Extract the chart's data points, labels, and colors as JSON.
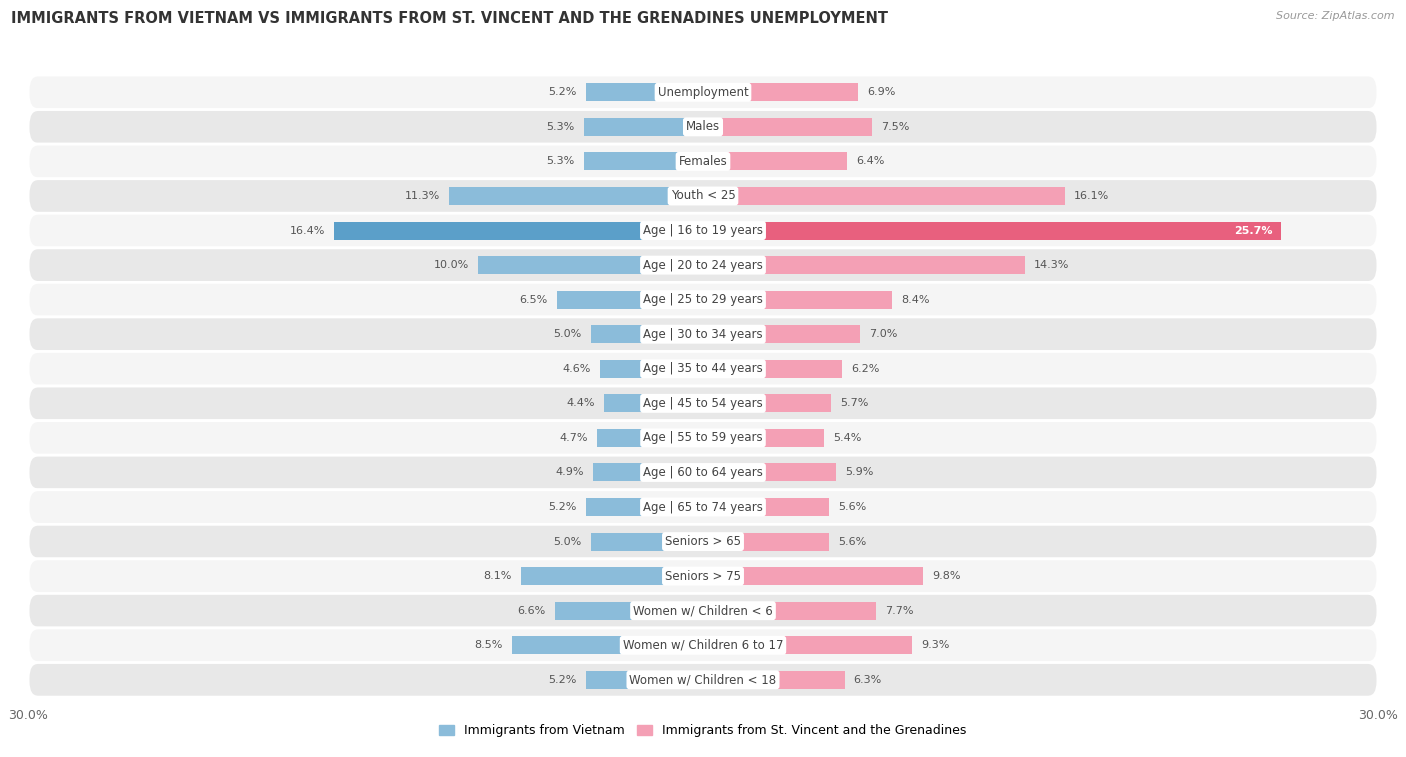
{
  "title": "IMMIGRANTS FROM VIETNAM VS IMMIGRANTS FROM ST. VINCENT AND THE GRENADINES UNEMPLOYMENT",
  "source": "Source: ZipAtlas.com",
  "categories": [
    "Unemployment",
    "Males",
    "Females",
    "Youth < 25",
    "Age | 16 to 19 years",
    "Age | 20 to 24 years",
    "Age | 25 to 29 years",
    "Age | 30 to 34 years",
    "Age | 35 to 44 years",
    "Age | 45 to 54 years",
    "Age | 55 to 59 years",
    "Age | 60 to 64 years",
    "Age | 65 to 74 years",
    "Seniors > 65",
    "Seniors > 75",
    "Women w/ Children < 6",
    "Women w/ Children 6 to 17",
    "Women w/ Children < 18"
  ],
  "vietnam_values": [
    5.2,
    5.3,
    5.3,
    11.3,
    16.4,
    10.0,
    6.5,
    5.0,
    4.6,
    4.4,
    4.7,
    4.9,
    5.2,
    5.0,
    8.1,
    6.6,
    8.5,
    5.2
  ],
  "svg_values": [
    6.9,
    7.5,
    6.4,
    16.1,
    25.7,
    14.3,
    8.4,
    7.0,
    6.2,
    5.7,
    5.4,
    5.9,
    5.6,
    5.6,
    9.8,
    7.7,
    9.3,
    6.3
  ],
  "vietnam_color": "#8bbcda",
  "svg_color": "#f4a0b5",
  "highlight_vietnam_color": "#5b9fc9",
  "highlight_svg_color": "#e8607e",
  "xlim": 30.0,
  "bar_height": 0.52,
  "row_bg_light": "#f5f5f5",
  "row_bg_dark": "#e8e8e8",
  "label_bg": "#ffffff",
  "highlight_row": 4,
  "legend_vietnam": "Immigrants from Vietnam",
  "legend_svg": "Immigrants from St. Vincent and the Grenadines",
  "title_fontsize": 10.5,
  "source_fontsize": 8,
  "label_fontsize": 8,
  "category_fontsize": 8.5
}
